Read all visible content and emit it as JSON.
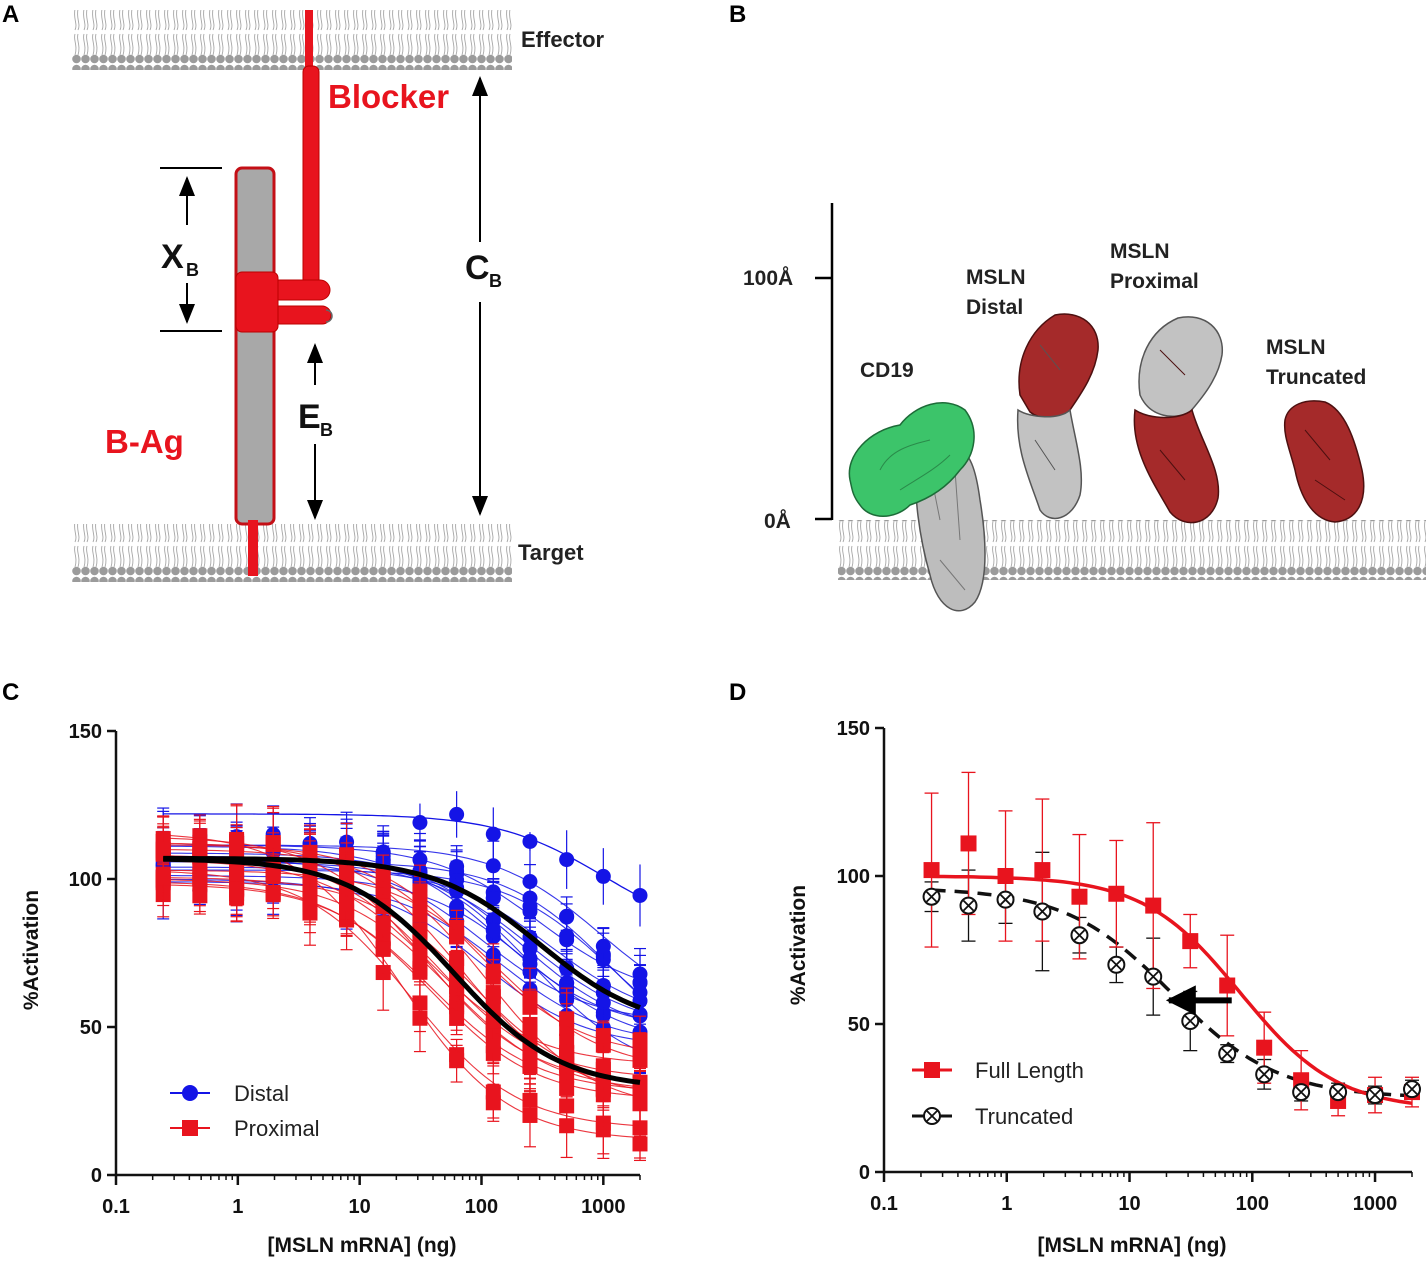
{
  "panel_letters": [
    "A",
    "B",
    "C",
    "D"
  ],
  "panelA": {
    "effector": "Effector",
    "target": "Target",
    "blocker": "Blocker",
    "bag": "B-Ag",
    "xb_main": "X",
    "xb_sub": "B",
    "cb_main": "C",
    "cb_sub": "B",
    "eb_main": "E",
    "eb_sub": "B",
    "colors": {
      "red": "#e8141e",
      "gray": "#a8a8a8",
      "membrane": "#9a9a9a"
    }
  },
  "panelB": {
    "tick_top": "100Å",
    "tick_bottom": "0Å",
    "labels": {
      "cd19": "CD19",
      "distal_1": "MSLN",
      "distal_2": "Distal",
      "proximal_1": "MSLN",
      "proximal_2": "Proximal",
      "truncated_1": "MSLN",
      "truncated_2": "Truncated"
    },
    "colors": {
      "green": "#3cc46a",
      "darkred": "#a52a2a",
      "lightgray": "#c2c2c2"
    }
  },
  "chart_data": [
    {
      "id": "C",
      "type": "scatter",
      "title": "",
      "xlabel": "[MSLN mRNA] (ng)",
      "ylabel": "%Activation",
      "xscale": "log",
      "xlim": [
        0.1,
        2000
      ],
      "ylim": [
        0,
        150
      ],
      "xticks": [
        "0.1",
        "1",
        "10",
        "100",
        "1000"
      ],
      "yticks": [
        "0",
        "50",
        "100",
        "150"
      ],
      "legend": [
        {
          "label": "Distal",
          "color": "#1414e6",
          "marker": "circle"
        },
        {
          "label": "Proximal",
          "color": "#e8141e",
          "marker": "square"
        }
      ],
      "x": [
        0.244,
        0.488,
        0.977,
        1.95,
        3.91,
        7.81,
        15.6,
        31.25,
        62.5,
        125,
        250,
        500,
        1000,
        2000
      ],
      "series": [
        {
          "name": "Distal (mean fit)",
          "color": "#000000",
          "top": 107,
          "bottom": 49,
          "ec50": 300,
          "hill": 1.0
        },
        {
          "name": "Proximal (mean fit)",
          "color": "#000000",
          "top": 107,
          "bottom": 29,
          "ec50": 60,
          "hill": 1.0
        },
        {
          "name": "Distal (outlier)",
          "color": "#1414e6",
          "top": 122,
          "bottom": 80,
          "ec50": 1000,
          "hill": 1.0
        }
      ]
    },
    {
      "id": "D",
      "type": "line",
      "title": "",
      "xlabel": "[MSLN mRNA] (ng)",
      "ylabel": "%Activation",
      "xscale": "log",
      "xlim": [
        0.1,
        2000
      ],
      "ylim": [
        0,
        150
      ],
      "xticks": [
        "0.1",
        "1",
        "10",
        "100",
        "1000"
      ],
      "yticks": [
        "0",
        "50",
        "100",
        "150"
      ],
      "x": [
        0.244,
        0.488,
        0.977,
        1.95,
        3.91,
        7.81,
        15.6,
        31.25,
        62.5,
        125,
        250,
        500,
        1000,
        2000
      ],
      "series": [
        {
          "name": "Full Length",
          "color": "#e8141e",
          "marker": "square",
          "values": [
            102,
            111,
            100,
            102,
            93,
            94,
            90,
            78,
            63,
            42,
            31,
            24,
            26,
            27
          ],
          "errors": [
            26,
            24,
            22,
            24,
            21,
            18,
            28,
            9,
            17,
            12,
            10,
            5,
            6,
            5
          ],
          "fit": {
            "top": 100,
            "bottom": 21,
            "ec50": 80,
            "hill": 1.1
          }
        },
        {
          "name": "Truncated",
          "color": "#111111",
          "marker": "circle-x",
          "dashed": true,
          "values": [
            93,
            90,
            92,
            88,
            80,
            70,
            66,
            51,
            40,
            33,
            27,
            27,
            26,
            28
          ],
          "errors": [
            5,
            12,
            8,
            20,
            6,
            6,
            13,
            10,
            3,
            5,
            3,
            3,
            3,
            3
          ],
          "fit": {
            "top": 96,
            "bottom": 25,
            "ec50": 22,
            "hill": 1.0
          }
        }
      ]
    }
  ]
}
